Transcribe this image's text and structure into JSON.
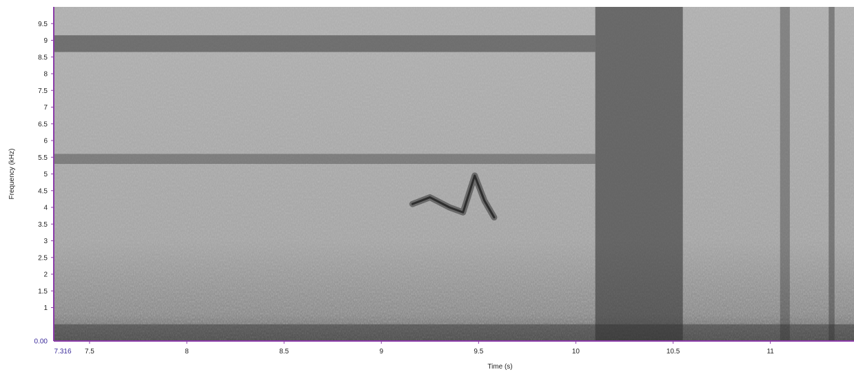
{
  "chart_data": {
    "type": "heatmap",
    "title": "",
    "xlabel": "Time (s)",
    "ylabel": "Frequency (kHz)",
    "xlim": [
      7.316,
      11.43
    ],
    "ylim": [
      0,
      10
    ],
    "x_start_label": "7.316",
    "y_origin_label": "0.00",
    "x_ticks": [
      "7.5",
      "8",
      "8.5",
      "9",
      "9.5",
      "10",
      "10.5",
      "11"
    ],
    "y_ticks": [
      "1",
      "1.5",
      "2",
      "2.5",
      "3",
      "3.5",
      "4",
      "4.5",
      "5",
      "5.5",
      "6",
      "6.5",
      "7",
      "7.5",
      "8",
      "8.5",
      "9",
      "9.5"
    ],
    "grid": false,
    "legend": "none",
    "colors": {
      "axis": "#8a3aa8",
      "accent_label": "#3a2a9a",
      "background_low": "#5a5a5a",
      "background_high": "#c8c8c8"
    },
    "noise_bands_khz": [
      {
        "center": 8.9,
        "width": 0.5,
        "x_end": 10.1,
        "strength": 0.55
      },
      {
        "center": 5.45,
        "width": 0.3,
        "x_end": 10.1,
        "strength": 0.4
      },
      {
        "center": 0.2,
        "width": 0.6,
        "x_end": 11.43,
        "strength": 0.5
      }
    ],
    "broadband_events": [
      {
        "x_start": 10.1,
        "x_end": 10.55,
        "strength": 0.55
      },
      {
        "x_start": 11.05,
        "x_end": 11.1,
        "strength": 0.35
      },
      {
        "x_start": 11.3,
        "x_end": 11.33,
        "strength": 0.4
      }
    ],
    "call": {
      "name": "",
      "points": [
        {
          "x": 9.16,
          "y": 4.1
        },
        {
          "x": 9.25,
          "y": 4.3
        },
        {
          "x": 9.35,
          "y": 4.0
        },
        {
          "x": 9.42,
          "y": 3.85
        },
        {
          "x": 9.48,
          "y": 4.95
        },
        {
          "x": 9.53,
          "y": 4.2
        },
        {
          "x": 9.58,
          "y": 3.7
        }
      ]
    }
  }
}
